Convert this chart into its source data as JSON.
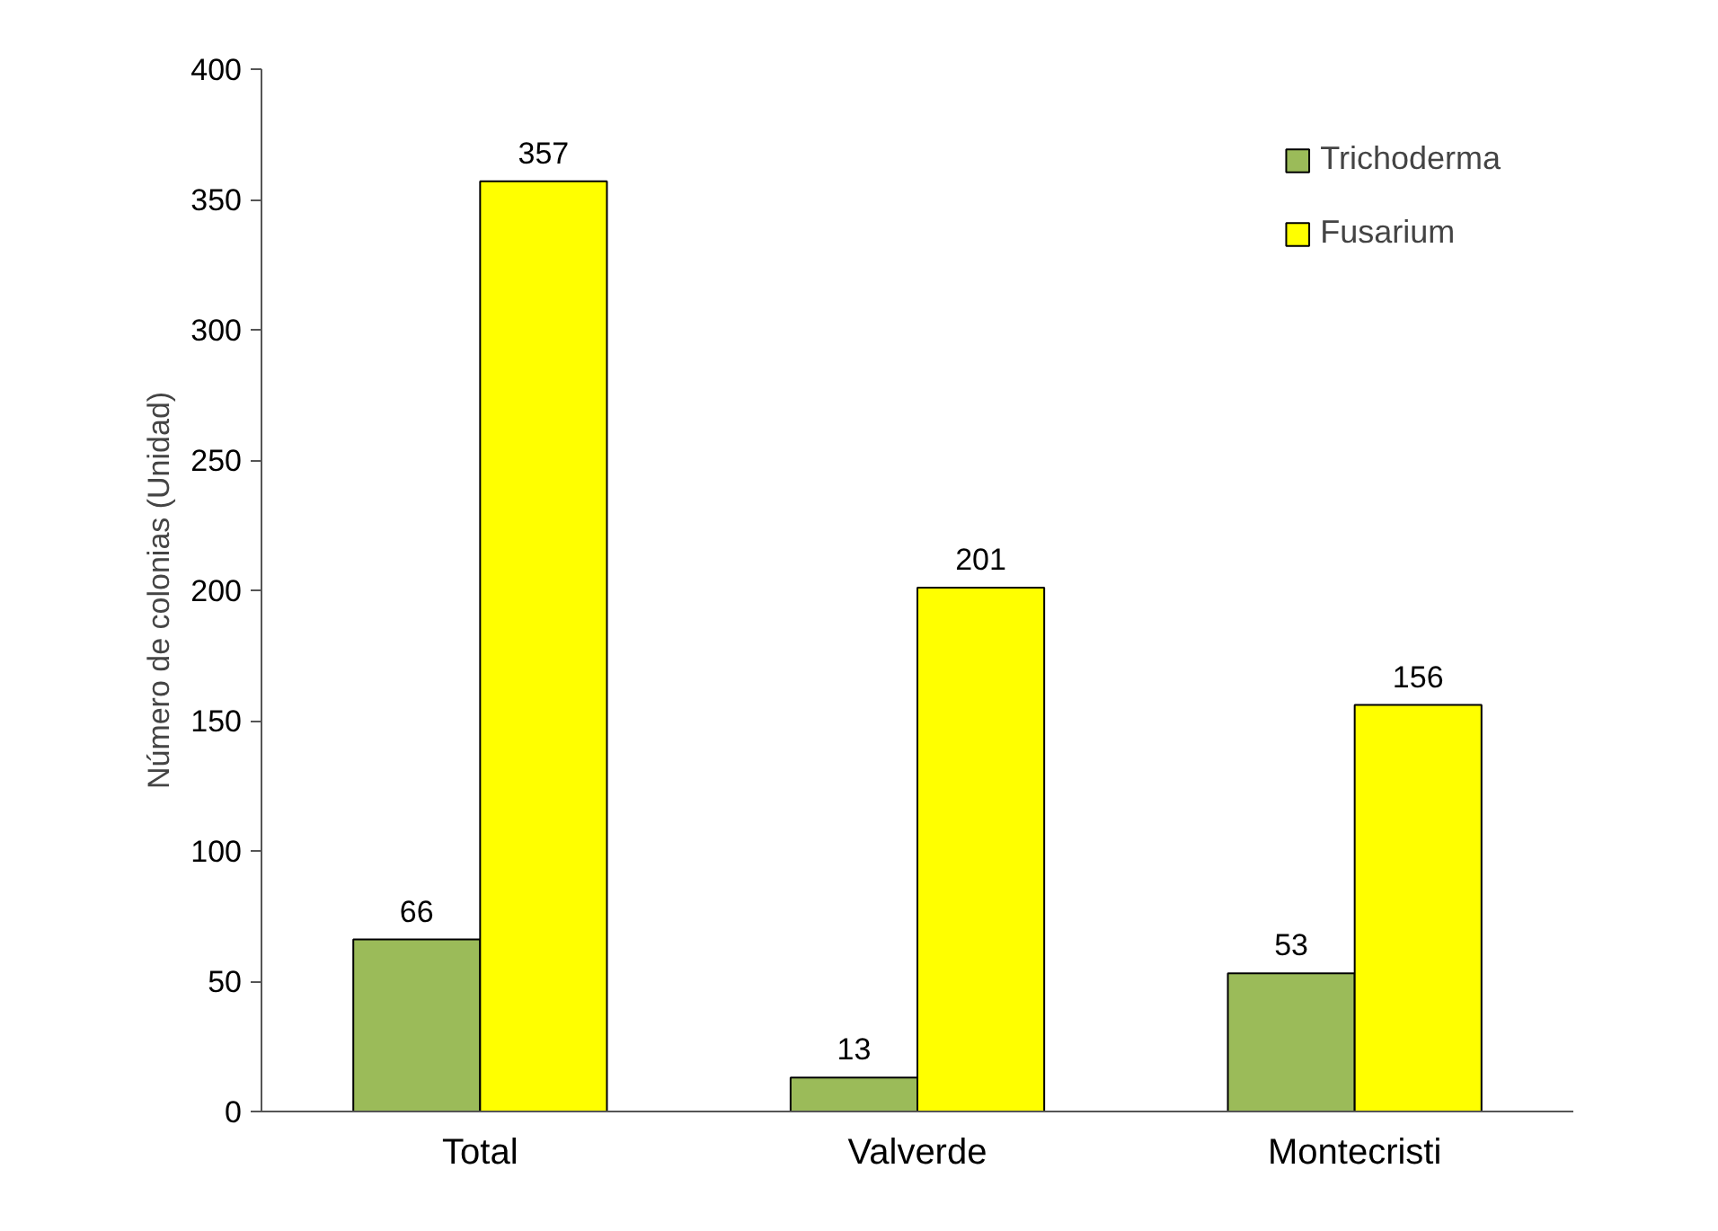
{
  "chart_data": {
    "type": "bar",
    "ylabel": "Número de colonias (Unidad)",
    "categories": [
      "Total",
      "Valverde",
      "Montecristi"
    ],
    "series": [
      {
        "name": "Trichoderma",
        "color": "#9bbb59",
        "values": [
          66,
          13,
          53
        ]
      },
      {
        "name": "Fusarium",
        "color": "#ffff00",
        "values": [
          357,
          201,
          156
        ]
      }
    ],
    "ylim": [
      0,
      400
    ],
    "yticks": [
      0,
      50,
      100,
      150,
      200,
      250,
      300,
      350,
      400
    ],
    "data_labels": true,
    "legend": "top right",
    "grid": false
  }
}
